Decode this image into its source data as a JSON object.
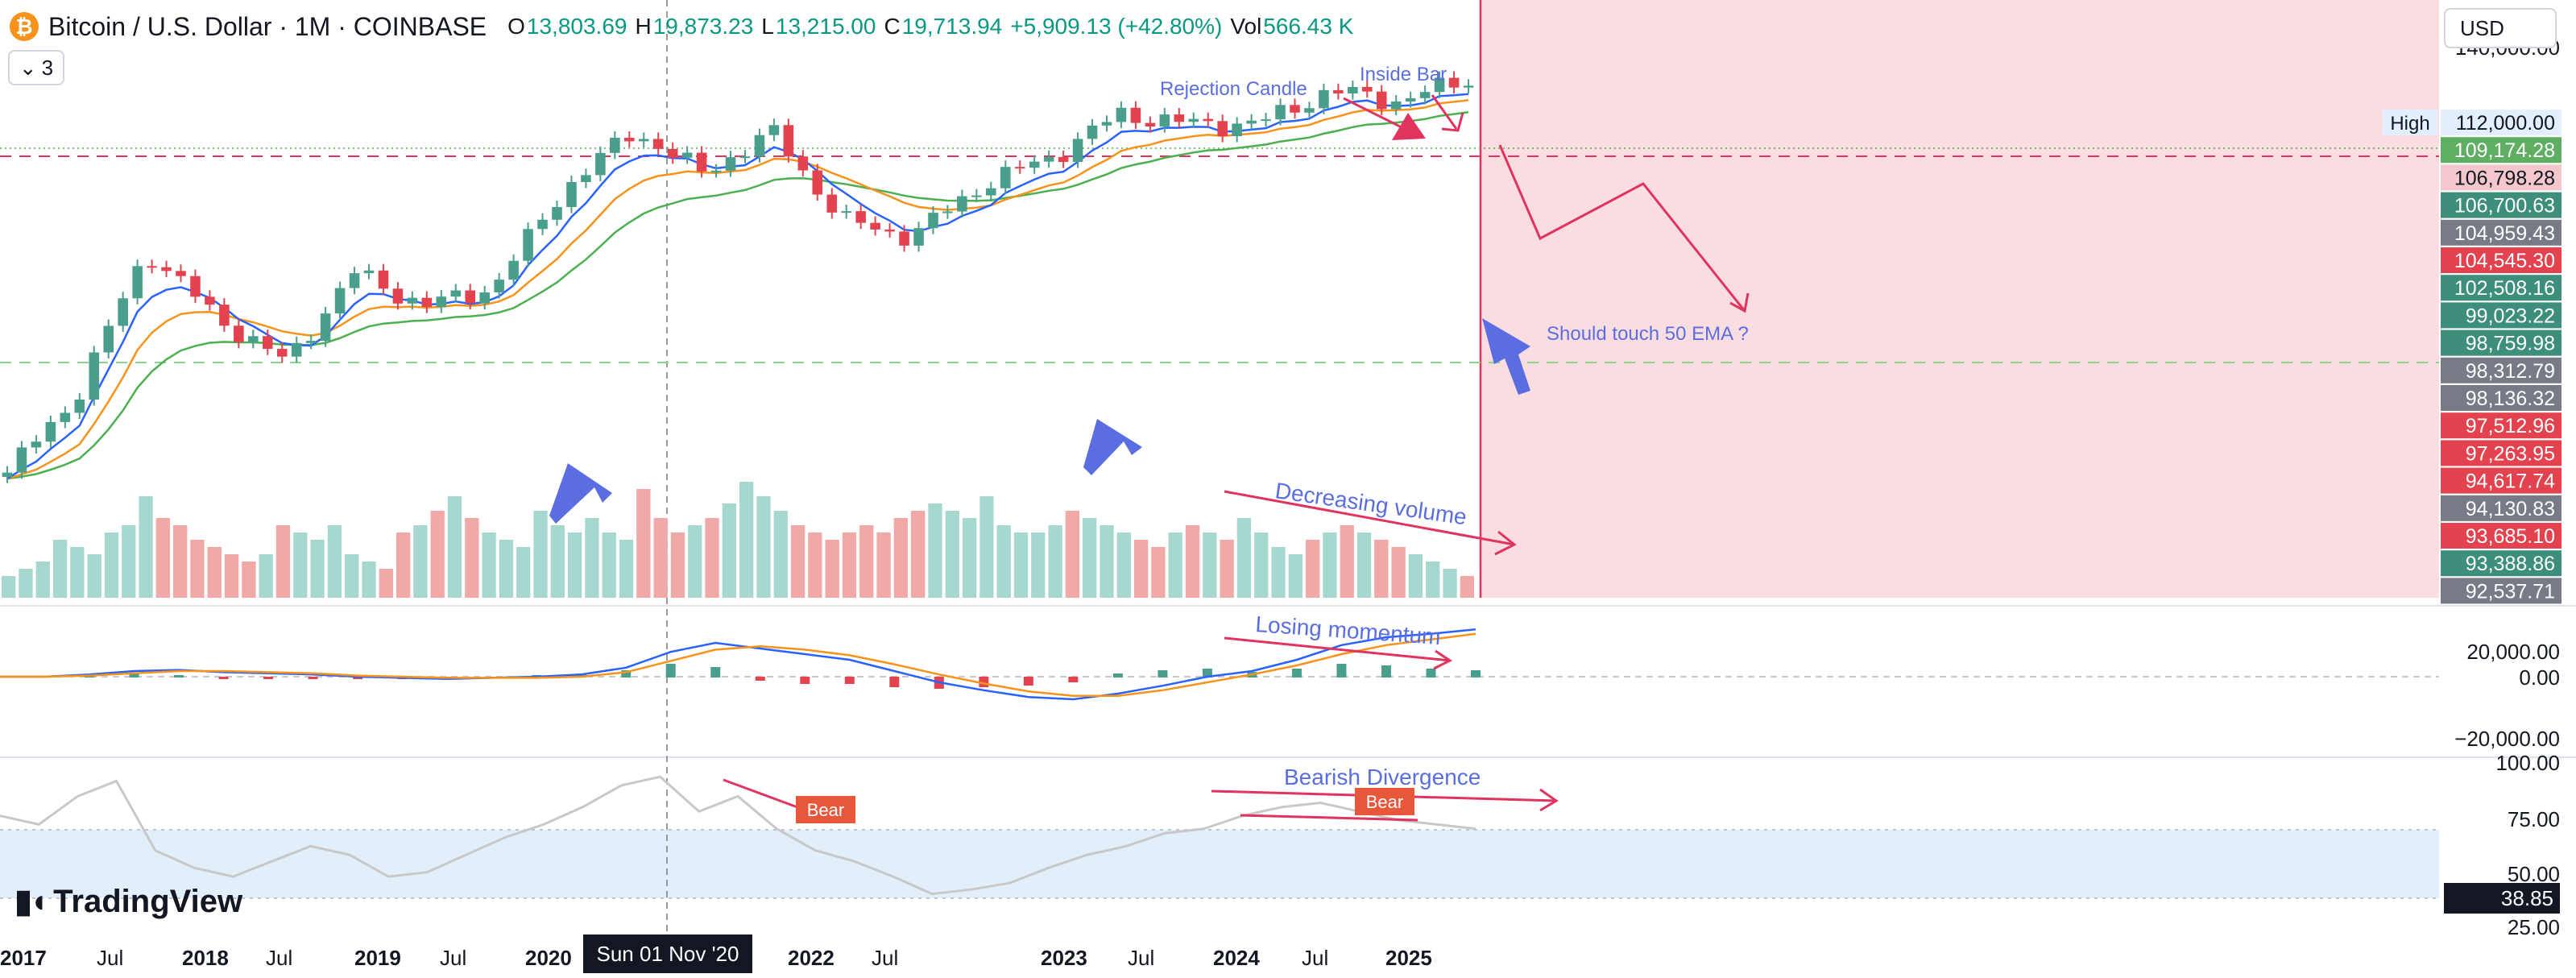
{
  "legend": {
    "symbol_icon": "bitcoin-icon",
    "title": "Bitcoin / U.S. Dollar · 1M · COINBASE",
    "open_label": "O",
    "open": "13,803.69",
    "high_label": "H",
    "high": "19,873.23",
    "low_label": "L",
    "low": "13,215.00",
    "close_label": "C",
    "close": "19,713.94",
    "change": "+5,909.13 (+42.80%)",
    "vol_label": "Vol",
    "vol": "566.43 K"
  },
  "collapse_btn": {
    "icon": "chevron-down-icon",
    "count": "3"
  },
  "currency": "USD",
  "logo_text": "TradingView",
  "crosshair_date": "Sun 01 Nov '20",
  "colors": {
    "up": "#4a9e8c",
    "down": "#e2434f",
    "vol_up": "#a7d8cf",
    "vol_down": "#f0a9a6",
    "ema_fast": "#2962ff",
    "ema_mid": "#f7931a",
    "ema_slow": "#4caf50",
    "annotation_red": "#e0335e",
    "annotation_blue": "#5b6ee1",
    "zone_fill": "#f9dde1",
    "rsi_band": "#e3eefb"
  },
  "chart_data": [
    {
      "type": "candlestick",
      "pane": "price",
      "x_tick_labels": [
        "2017",
        "Jul",
        "2018",
        "Jul",
        "2019",
        "Jul",
        "2020",
        "Jul",
        "2022",
        "Jul",
        "2023",
        "Jul",
        "2024",
        "Jul",
        "2025"
      ],
      "price_scale_labels": [
        "140,000.00",
        "112,000.00"
      ],
      "series": [
        {
          "name": "BTCUSD",
          "x": [
            "2016-12",
            "2017-06",
            "2017-12",
            "2018-06",
            "2018-12",
            "2019-06",
            "2019-12",
            "2020-06",
            "2020-12",
            "2021-04",
            "2021-06",
            "2021-11",
            "2022-06",
            "2022-12",
            "2023-06",
            "2023-12",
            "2024-03",
            "2024-06",
            "2024-09",
            "2024-12",
            "2025-03",
            "2025-06"
          ],
          "close": [
            1000,
            2500,
            14000,
            6400,
            3700,
            10800,
            7200,
            9100,
            29000,
            58000,
            35000,
            57000,
            20000,
            16500,
            30500,
            42300,
            71000,
            62700,
            63300,
            93400,
            82500,
            107000
          ]
        }
      ],
      "badges": [
        {
          "label": "High",
          "value": "112,000.00"
        },
        {
          "value": "109,174.28"
        },
        {
          "value": "106,798.28"
        },
        {
          "value": "106,700.63"
        },
        {
          "value": "104,959.43"
        },
        {
          "value": "104,545.30"
        },
        {
          "value": "102,508.16"
        },
        {
          "value": "99,023.22"
        },
        {
          "value": "98,759.98"
        },
        {
          "value": "98,312.79"
        },
        {
          "value": "98,136.32"
        },
        {
          "value": "97,512.96"
        },
        {
          "value": "97,263.95"
        },
        {
          "value": "94,617.74"
        },
        {
          "value": "94,130.83"
        },
        {
          "value": "93,685.10"
        },
        {
          "value": "93,388.86"
        },
        {
          "value": "92,537.71"
        }
      ]
    },
    {
      "type": "bar",
      "pane": "volume",
      "values_relative": [
        0.15,
        0.2,
        0.25,
        0.4,
        0.35,
        0.3,
        0.45,
        0.5,
        0.7,
        0.55,
        0.5,
        0.4,
        0.35,
        0.3,
        0.25,
        0.3,
        0.5,
        0.45,
        0.4,
        0.5,
        0.3,
        0.25,
        0.2,
        0.45,
        0.5,
        0.6,
        0.7,
        0.55,
        0.45,
        0.4,
        0.35,
        0.6,
        0.5,
        0.45,
        0.55,
        0.45,
        0.4,
        0.75,
        0.55,
        0.45,
        0.5,
        0.55,
        0.65,
        0.8,
        0.7,
        0.6,
        0.5,
        0.45,
        0.4,
        0.45,
        0.5,
        0.45,
        0.55,
        0.6,
        0.65,
        0.6,
        0.55,
        0.7,
        0.5,
        0.45,
        0.45,
        0.5,
        0.6,
        0.55,
        0.5,
        0.45,
        0.4,
        0.35,
        0.45,
        0.5,
        0.45,
        0.4,
        0.55,
        0.45,
        0.35,
        0.3,
        0.4,
        0.45,
        0.5,
        0.45,
        0.4,
        0.35,
        0.3,
        0.25,
        0.2,
        0.15
      ]
    },
    {
      "type": "line",
      "pane": "macd",
      "y_tick_labels": [
        "20,000.00",
        "0.00",
        "−20,000.00"
      ],
      "series": [
        {
          "values": [
            0,
            0,
            0.02,
            0.05,
            0.06,
            0.04,
            0.03,
            0.02,
            0,
            -0.01,
            -0.02,
            -0.01,
            0,
            0.02,
            0.08,
            0.22,
            0.3,
            0.25,
            0.2,
            0.15,
            0.05,
            -0.05,
            -0.12,
            -0.18,
            -0.2,
            -0.15,
            -0.08,
            0,
            0.05,
            0.15,
            0.28,
            0.35,
            0.38,
            0.42
          ]
        },
        {
          "values": [
            0,
            0,
            0.01,
            0.03,
            0.05,
            0.05,
            0.04,
            0.03,
            0.01,
            0,
            -0.01,
            -0.01,
            -0.01,
            0,
            0.04,
            0.14,
            0.24,
            0.27,
            0.24,
            0.19,
            0.11,
            0.02,
            -0.06,
            -0.13,
            -0.17,
            -0.17,
            -0.12,
            -0.05,
            0.02,
            0.1,
            0.2,
            0.28,
            0.33,
            0.38
          ]
        }
      ]
    },
    {
      "type": "line",
      "pane": "rsi",
      "y_tick_labels": [
        "100.00",
        "75.00",
        "50.00",
        "25.00"
      ],
      "current_value": "38.85",
      "series": [
        {
          "values": [
            76,
            72,
            85,
            92,
            60,
            52,
            48,
            55,
            62,
            58,
            48,
            50,
            58,
            66,
            72,
            80,
            90,
            94,
            78,
            85,
            70,
            60,
            55,
            48,
            40,
            42,
            45,
            52,
            58,
            62,
            68,
            70,
            76,
            80,
            82,
            78,
            74,
            72,
            70
          ]
        }
      ]
    }
  ],
  "annotations": {
    "rejection_candle": "Rejection Candle",
    "inside_bar": "Inside Bar",
    "should_touch": "Should touch  50 EMA ?",
    "decreasing_volume": "Decreasing volume",
    "losing_momentum": "Losing momentum",
    "bearish_divergence": "Bearish Divergence",
    "bear_1": "Bear",
    "bear_2": "Bear"
  }
}
